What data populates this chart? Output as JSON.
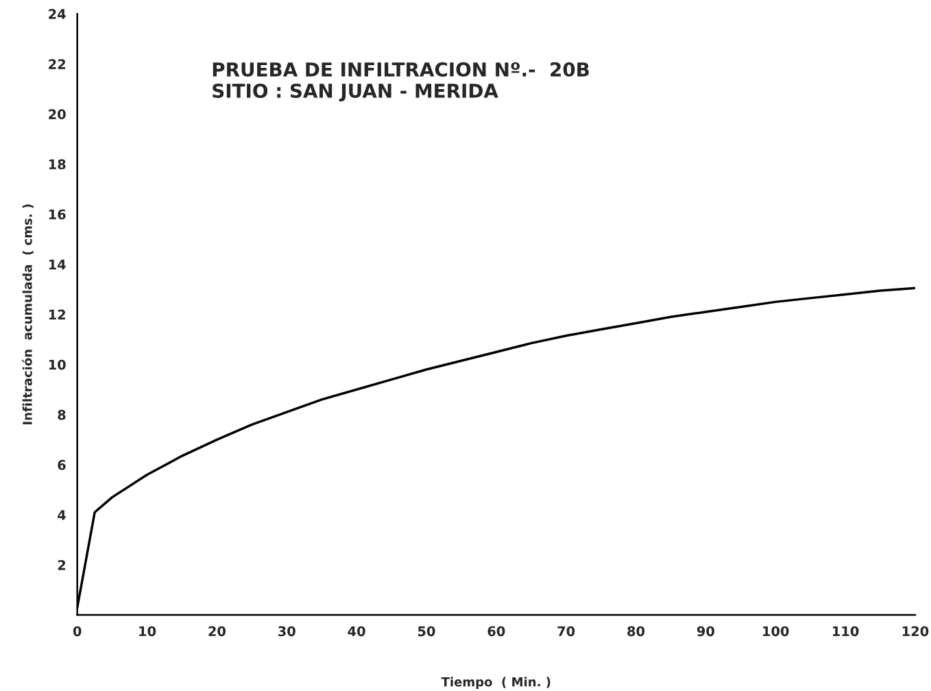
{
  "chart_data": {
    "type": "line",
    "title": "PRUEBA DE INFILTRACION Nº.-  20B\nSITIO : SAN JUAN - MERIDA",
    "xlabel": "Tiempo  ( Min. )",
    "ylabel": "Infiltración  acumulada  ( cms. )",
    "series": [
      {
        "color": "#000000",
        "x": [
          0,
          2.5,
          5,
          10,
          15,
          20,
          25,
          30,
          35,
          40,
          45,
          50,
          55,
          60,
          65,
          70,
          75,
          80,
          85,
          90,
          95,
          100,
          105,
          110,
          115,
          120
        ],
        "values": [
          0.3,
          4.1,
          4.7,
          5.6,
          6.35,
          7.0,
          7.6,
          8.1,
          8.6,
          9.0,
          9.4,
          9.8,
          10.15,
          10.5,
          10.85,
          11.15,
          11.4,
          11.65,
          11.9,
          12.1,
          12.3,
          12.5,
          12.65,
          12.8,
          12.95,
          13.05
        ]
      }
    ],
    "xlim": [
      0,
      120
    ],
    "ylim": [
      0,
      24
    ],
    "xticks": [
      0,
      10,
      20,
      30,
      40,
      50,
      60,
      70,
      80,
      90,
      100,
      110,
      120
    ],
    "yticks": [
      {
        "value": 0,
        "label": null
      },
      2,
      4,
      6,
      8,
      10,
      12,
      14,
      16,
      18,
      20,
      22,
      24
    ],
    "grid": false,
    "legend": false,
    "marker": "none",
    "line_style": "solid"
  }
}
